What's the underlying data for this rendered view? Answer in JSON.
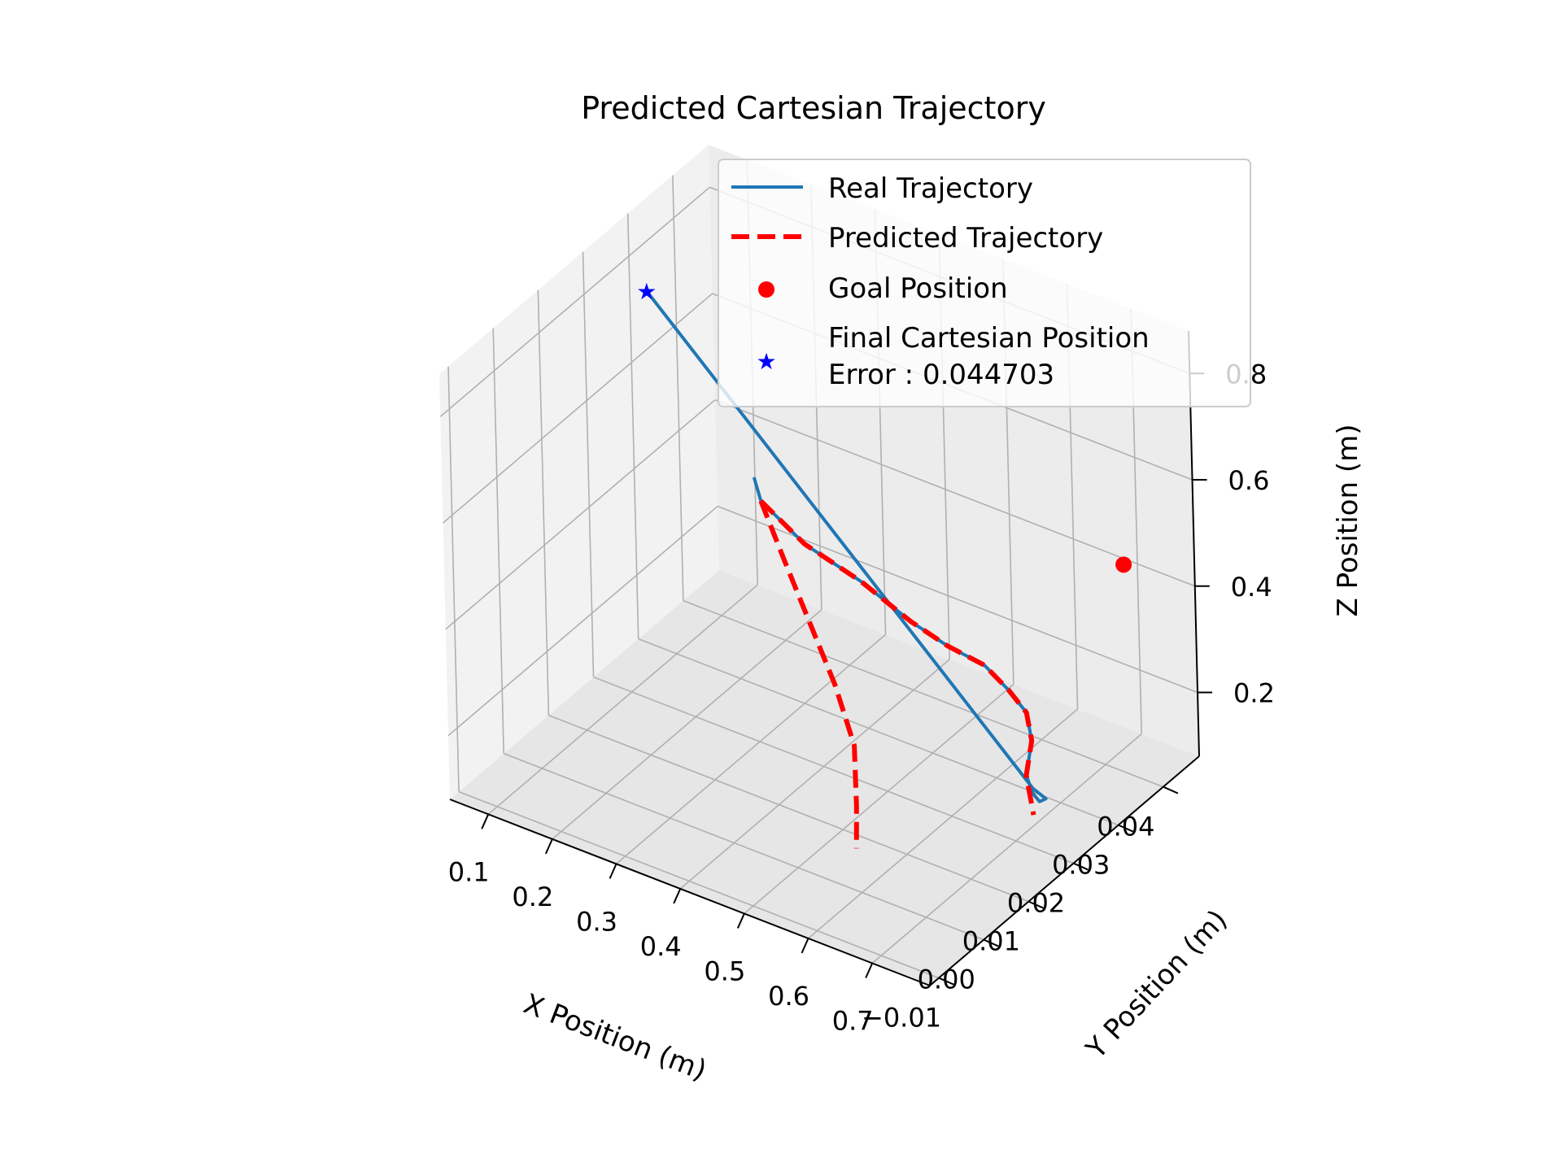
{
  "chart_data": {
    "type": "line",
    "projection": "3d",
    "title": "Predicted Cartesian Trajectory",
    "xlabel": "X Position (m)",
    "ylabel": "Y Position (m)",
    "zlabel": "Z Position (m)",
    "xlim": [
      0.04,
      0.79
    ],
    "ylim": [
      -0.012,
      0.048
    ],
    "zlim": [
      0.08,
      0.88
    ],
    "x_ticks": [
      "0.1",
      "0.2",
      "0.3",
      "0.4",
      "0.5",
      "0.6",
      "0.7"
    ],
    "y_ticks": [
      "−0.01",
      "0.00",
      "0.01",
      "0.02",
      "0.03",
      "0.04"
    ],
    "z_ticks": [
      "0.2",
      "0.4",
      "0.6",
      "0.8"
    ],
    "grid": true,
    "legend_position": "upper-right",
    "colors": {
      "real": "#1f77b4",
      "predicted": "#ff0000",
      "goal": "#ff0000",
      "final": "#0000ff",
      "pane_light": "#f2f2f2",
      "pane_dark": "#e6e6e6",
      "grid": "#b0b0b0"
    },
    "series": [
      {
        "name": "Real Trajectory",
        "style": "solid",
        "x": [
          0.33,
          0.34,
          0.4,
          0.48,
          0.55,
          0.6,
          0.65,
          0.68,
          0.7,
          0.7,
          0.69,
          0.7,
          0.71,
          0.72,
          0.7,
          0.11
        ],
        "y": [
          0.016,
          0.016,
          0.017,
          0.018,
          0.019,
          0.02,
          0.021,
          0.022,
          0.023,
          0.024,
          0.024,
          0.024,
          0.024,
          0.024,
          0.024,
          0.024
        ],
        "z": [
          0.62,
          0.58,
          0.52,
          0.48,
          0.43,
          0.4,
          0.38,
          0.34,
          0.3,
          0.24,
          0.17,
          0.14,
          0.13,
          0.14,
          0.15,
          0.81
        ]
      },
      {
        "name": "Predicted Trajectory",
        "style": "dashed",
        "x": [
          0.34,
          0.4,
          0.48,
          0.55,
          0.6,
          0.65,
          0.68,
          0.7,
          0.7,
          0.69,
          0.7
        ],
        "y": [
          0.016,
          0.017,
          0.018,
          0.019,
          0.02,
          0.021,
          0.022,
          0.023,
          0.024,
          0.024,
          0.024
        ],
        "z": [
          0.58,
          0.52,
          0.48,
          0.43,
          0.4,
          0.38,
          0.34,
          0.3,
          0.24,
          0.17,
          0.1
        ]
      },
      {
        "name": "Predicted Trajectory (branch)",
        "style": "dashed",
        "x": [
          0.34,
          0.38,
          0.44,
          0.5,
          0.55,
          0.58,
          0.6
        ],
        "y": [
          0.016,
          0.015,
          0.012,
          0.009,
          0.006,
          0.002,
          -0.001
        ],
        "z": [
          0.58,
          0.5,
          0.43,
          0.36,
          0.29,
          0.22,
          0.17
        ]
      }
    ],
    "points": [
      {
        "name": "Goal Position",
        "marker": "circle",
        "x": 0.7,
        "y": 0.045,
        "z": 0.42
      },
      {
        "name": "Final Cartesian Position Error : 0.044703",
        "marker": "star",
        "x": 0.11,
        "y": 0.024,
        "z": 0.81
      }
    ],
    "legend": [
      {
        "label": "Real Trajectory",
        "kind": "line"
      },
      {
        "label": "Predicted Trajectory",
        "kind": "dashed"
      },
      {
        "label": "Goal Position",
        "kind": "circle"
      },
      {
        "label_line1": "Final Cartesian Position",
        "label_line2": "Error : 0.044703",
        "kind": "star"
      }
    ]
  }
}
